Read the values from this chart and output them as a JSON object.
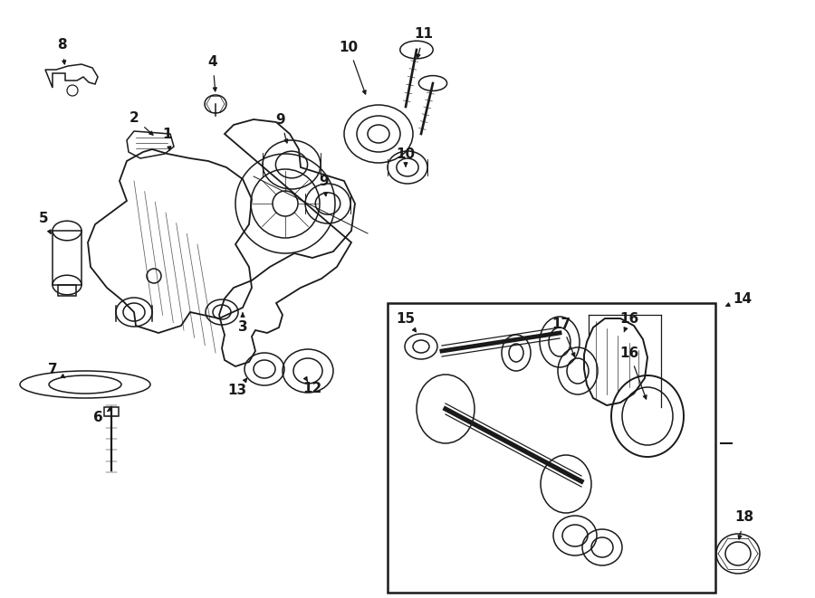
{
  "bg_color": "#ffffff",
  "line_color": "#1a1a1a",
  "fig_width": 9.0,
  "fig_height": 6.61,
  "dpi": 100,
  "xlim": [
    0,
    9.0
  ],
  "ylim": [
    0,
    6.61
  ]
}
